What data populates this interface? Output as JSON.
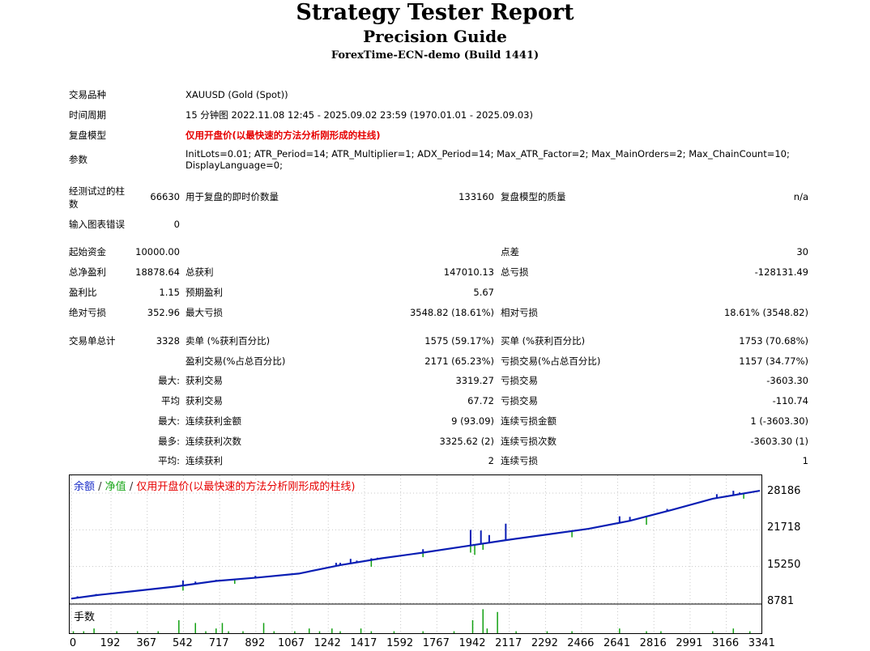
{
  "header": {
    "title": "Strategy Tester Report",
    "subtitle": "Precision Guide",
    "server": "ForexTime-ECN-demo (Build 1441)"
  },
  "settings": {
    "symbol_label": "交易品种",
    "symbol_value": "XAUUSD (Gold (Spot))",
    "period_label": "时间周期",
    "period_value": "15 分钟图 2022.11.08 12:45 - 2025.09.02 23:59 (1970.01.01 - 2025.09.03)",
    "model_label": "复盘模型",
    "model_value": "仅用开盘价(以最快速的方法分析刚形成的柱线)",
    "params_label": "参数",
    "params_line1": "InitLots=0.01; ATR_Period=14; ATR_Multiplier=1; ADX_Period=14; Max_ATR_Factor=2; Max_MainOrders=2; Max_ChainCount=10;",
    "params_line2": "DisplayLanguage=0;"
  },
  "bars": {
    "bars_label_1": "经测试过的柱",
    "bars_label_2": "数",
    "bars_value": "66630",
    "ticks_label": "用于复盘的即时价数量",
    "ticks_value": "133160",
    "quality_label": "复盘模型的质量",
    "quality_value": "n/a",
    "errors_label": "输入图表错误",
    "errors_value": "0"
  },
  "results": {
    "deposit_label": "起始资金",
    "deposit_value": "10000.00",
    "spread_label": "点差",
    "spread_value": "30",
    "net_label": "总净盈利",
    "net_value": "18878.64",
    "gross_profit_label": "总获利",
    "gross_profit_value": "147010.13",
    "gross_loss_label": "总亏损",
    "gross_loss_value": "-128131.49",
    "pf_label": "盈利比",
    "pf_value": "1.15",
    "expected_label": "预期盈利",
    "expected_value": "5.67",
    "abs_dd_label": "绝对亏损",
    "abs_dd_value": "352.96",
    "max_dd_label": "最大亏损",
    "max_dd_value": "3548.82 (18.61%)",
    "rel_dd_label": "相对亏损",
    "rel_dd_value": "18.61% (3548.82)"
  },
  "trades": {
    "total_label": "交易单总计",
    "total_value": "3328",
    "short_label": "卖单 (%获利百分比)",
    "short_value": "1575 (59.17%)",
    "long_label": "买单 (%获利百分比)",
    "long_value": "1753 (70.68%)",
    "profit_trades_label": "盈利交易(%占总百分比)",
    "profit_trades_value": "2171 (65.23%)",
    "loss_trades_label": "亏损交易(%占总百分比)",
    "loss_trades_value": "1157 (34.77%)",
    "largest_label": "最大:",
    "largest_profit_label": "获利交易",
    "largest_profit_value": "3319.27",
    "largest_loss_label": "亏损交易",
    "largest_loss_value": "-3603.30",
    "average_label": "平均",
    "average_profit_label": "获利交易",
    "average_profit_value": "67.72",
    "average_loss_label": "亏损交易",
    "average_loss_value": "-110.74",
    "max_label": "最大:",
    "max_cons_wins_label": "连续获利金额",
    "max_cons_wins_value": "9 (93.09)",
    "max_cons_losses_label": "连续亏损金额",
    "max_cons_losses_value": "1 (-3603.30)",
    "maximal_label": "最多:",
    "maximal_cons_profit_label": "连续获利次数",
    "maximal_cons_profit_value": "3325.62 (2)",
    "maximal_cons_loss_label": "连续亏损次数",
    "maximal_cons_loss_value": "-3603.30 (1)",
    "avg_cons_label": "平均:",
    "avg_cons_wins_label": "连续获利",
    "avg_cons_wins_value": "2",
    "avg_cons_losses_label": "连续亏损",
    "avg_cons_losses_value": "1"
  },
  "chart_data": {
    "type": "line",
    "legend": {
      "balance": "余额",
      "sep1": " / ",
      "equity": "净值",
      "sep2": " / ",
      "model": "仅用开盘价(以最快速的方法分析刚形成的柱线)"
    },
    "volume_label": "手数",
    "y_ticks": [
      28186,
      21718,
      15250,
      8781
    ],
    "y_tick_labels": [
      "28186",
      "21718",
      "15250",
      "8781"
    ],
    "x_ticks": [
      0,
      192,
      367,
      542,
      717,
      892,
      1067,
      1242,
      1417,
      1592,
      1767,
      1942,
      2117,
      2292,
      2466,
      2641,
      2816,
      2991,
      3166,
      3341
    ],
    "x_tick_labels": [
      "0",
      "192",
      "367",
      "542",
      "717",
      "892",
      "1067",
      "1242",
      "1417",
      "1592",
      "1767",
      "1942",
      "2117",
      "2292",
      "2466",
      "2641",
      "2816",
      "2991",
      "3166",
      "3341"
    ],
    "xlim": [
      0,
      3328
    ],
    "ylim": [
      8781,
      28186
    ],
    "series": [
      {
        "name": "余额",
        "color": "#0a1eb4",
        "x": [
          0,
          120,
          300,
          500,
          700,
          900,
          1100,
          1300,
          1500,
          1700,
          1900,
          2100,
          2300,
          2500,
          2700,
          2900,
          3100,
          3328
        ],
        "values": [
          9600,
          10200,
          10900,
          11700,
          12700,
          13300,
          14000,
          15500,
          16700,
          17700,
          18800,
          19900,
          20900,
          21900,
          23300,
          25200,
          27200,
          28600
        ]
      },
      {
        "name": "净值",
        "color": "#12a012",
        "spikes": [
          {
            "x": 540,
            "value": 11000
          },
          {
            "x": 790,
            "value": 12200
          },
          {
            "x": 1170,
            "value": 14500
          },
          {
            "x": 1450,
            "value": 15200
          },
          {
            "x": 1700,
            "value": 16900
          },
          {
            "x": 1930,
            "value": 17700
          },
          {
            "x": 1950,
            "value": 17300
          },
          {
            "x": 1990,
            "value": 18200
          },
          {
            "x": 2420,
            "value": 20400
          },
          {
            "x": 2780,
            "value": 22600
          },
          {
            "x": 3250,
            "value": 27200
          }
        ]
      }
    ],
    "balance_spikes": [
      {
        "x": 30,
        "value": 10000
      },
      {
        "x": 120,
        "value": 10400
      },
      {
        "x": 540,
        "value": 12800
      },
      {
        "x": 600,
        "value": 12600
      },
      {
        "x": 700,
        "value": 12900
      },
      {
        "x": 890,
        "value": 13600
      },
      {
        "x": 1200,
        "value": 14800
      },
      {
        "x": 1280,
        "value": 15900
      },
      {
        "x": 1300,
        "value": 15900
      },
      {
        "x": 1350,
        "value": 16600
      },
      {
        "x": 1380,
        "value": 16300
      },
      {
        "x": 1450,
        "value": 16700
      },
      {
        "x": 1480,
        "value": 16800
      },
      {
        "x": 1700,
        "value": 18300
      },
      {
        "x": 1930,
        "value": 21700
      },
      {
        "x": 1980,
        "value": 21600
      },
      {
        "x": 2020,
        "value": 20800
      },
      {
        "x": 2100,
        "value": 22800
      },
      {
        "x": 2650,
        "value": 24100
      },
      {
        "x": 2700,
        "value": 24000
      },
      {
        "x": 2880,
        "value": 25400
      },
      {
        "x": 3120,
        "value": 28000
      },
      {
        "x": 3200,
        "value": 28600
      },
      {
        "x": 3230,
        "value": 28300
      }
    ],
    "volume_bars": [
      {
        "x": 10,
        "value": 1
      },
      {
        "x": 60,
        "value": 1
      },
      {
        "x": 110,
        "value": 2
      },
      {
        "x": 220,
        "value": 1
      },
      {
        "x": 320,
        "value": 1
      },
      {
        "x": 420,
        "value": 1
      },
      {
        "x": 520,
        "value": 5
      },
      {
        "x": 600,
        "value": 4
      },
      {
        "x": 650,
        "value": 1
      },
      {
        "x": 700,
        "value": 2
      },
      {
        "x": 730,
        "value": 4
      },
      {
        "x": 760,
        "value": 1
      },
      {
        "x": 830,
        "value": 1
      },
      {
        "x": 930,
        "value": 4
      },
      {
        "x": 980,
        "value": 1
      },
      {
        "x": 1080,
        "value": 1
      },
      {
        "x": 1150,
        "value": 2
      },
      {
        "x": 1200,
        "value": 1
      },
      {
        "x": 1260,
        "value": 2
      },
      {
        "x": 1300,
        "value": 1
      },
      {
        "x": 1400,
        "value": 2
      },
      {
        "x": 1450,
        "value": 1
      },
      {
        "x": 1560,
        "value": 1
      },
      {
        "x": 1700,
        "value": 1
      },
      {
        "x": 1850,
        "value": 1
      },
      {
        "x": 1940,
        "value": 5
      },
      {
        "x": 1990,
        "value": 9
      },
      {
        "x": 2010,
        "value": 2
      },
      {
        "x": 2060,
        "value": 8
      },
      {
        "x": 2150,
        "value": 1
      },
      {
        "x": 2300,
        "value": 1
      },
      {
        "x": 2420,
        "value": 1
      },
      {
        "x": 2650,
        "value": 2
      },
      {
        "x": 2780,
        "value": 1
      },
      {
        "x": 2850,
        "value": 1
      },
      {
        "x": 3100,
        "value": 1
      },
      {
        "x": 3200,
        "value": 2
      },
      {
        "x": 3280,
        "value": 1
      }
    ]
  },
  "colors": {
    "balance_line": "#0a1eb4",
    "equity_line": "#12a012",
    "model_text": "#e60000"
  }
}
